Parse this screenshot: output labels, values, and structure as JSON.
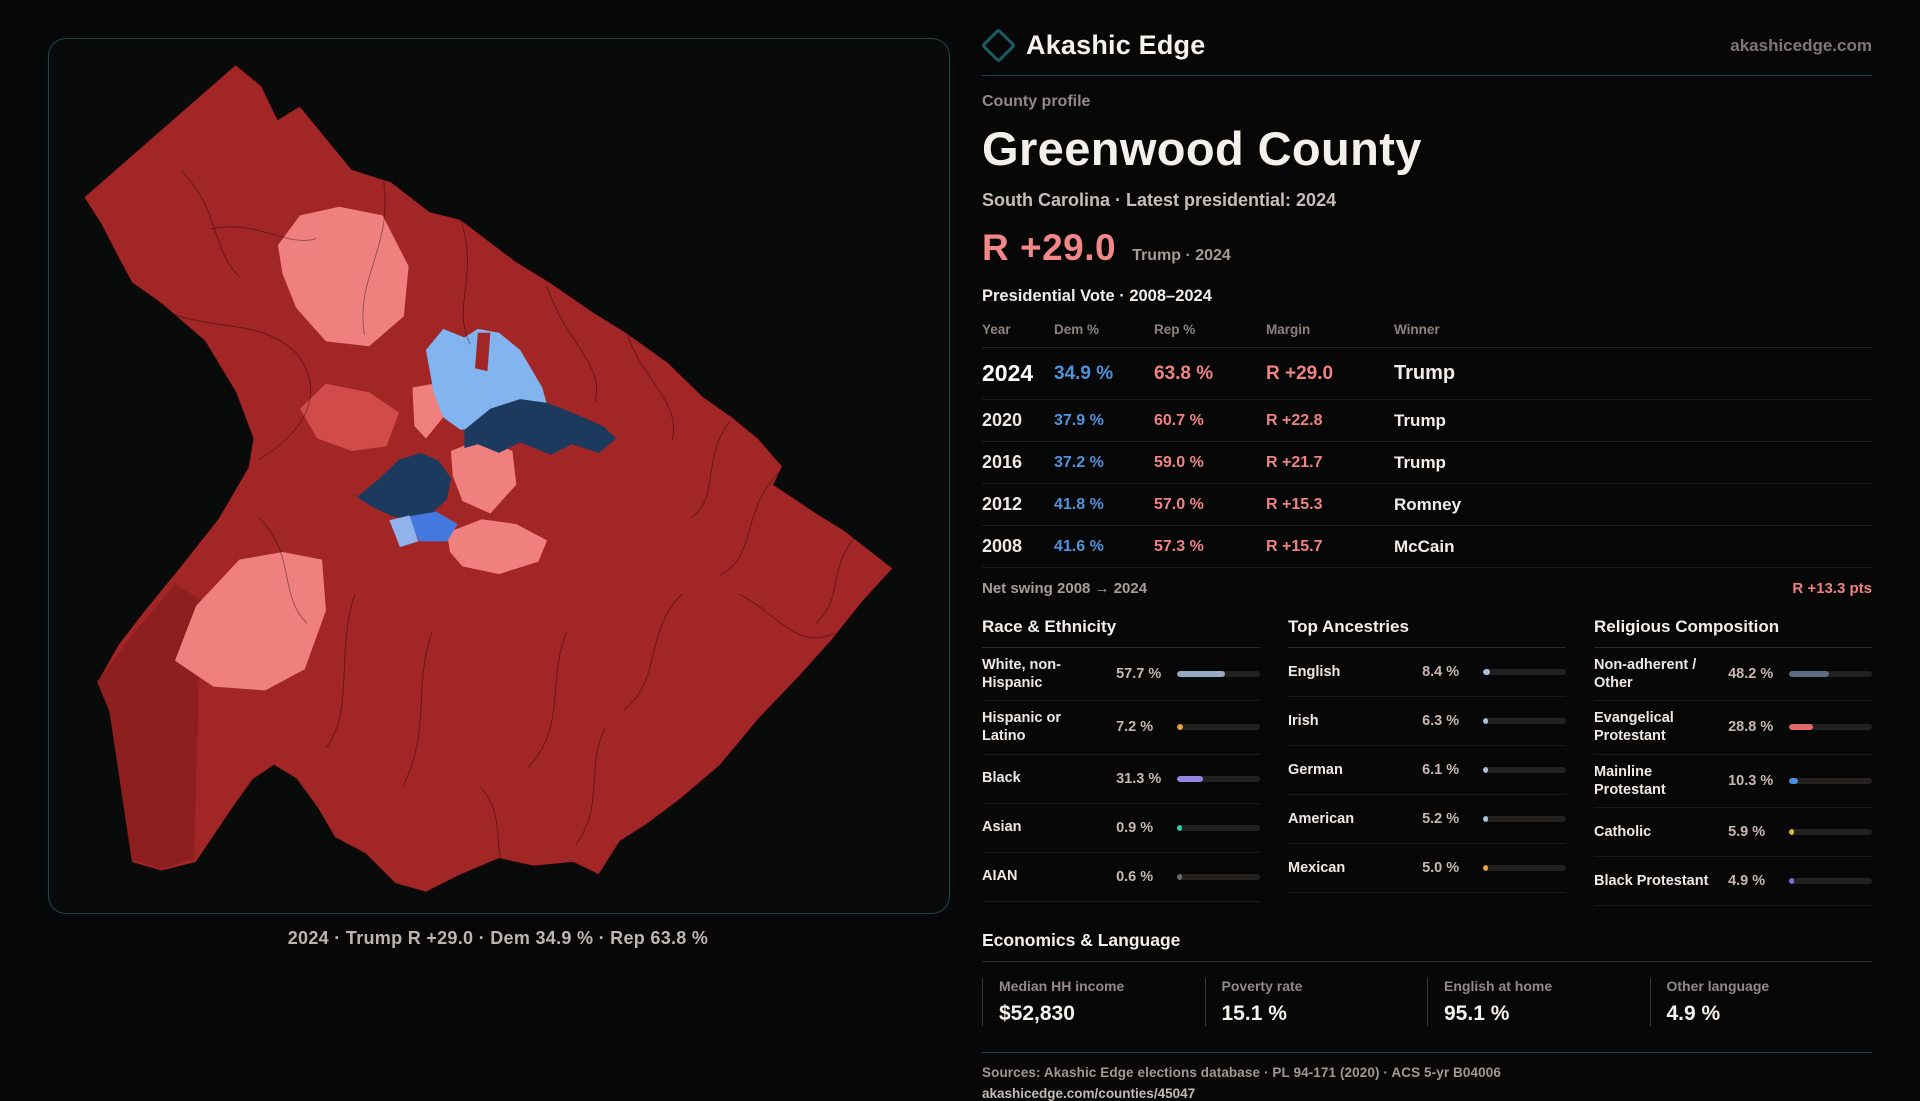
{
  "brand": {
    "logo": "diamond-icon",
    "name": "Akashic Edge",
    "site": "akashicedge.com"
  },
  "profile": {
    "kicker": "County profile",
    "title": "Greenwood County",
    "subtitle": "South Carolina · Latest presidential: 2024"
  },
  "headline": {
    "margin": "R +29.0",
    "note": "Trump · 2024"
  },
  "vote_table": {
    "title": "Presidential Vote · 2008–2024",
    "columns": {
      "year": "Year",
      "dem": "Dem %",
      "rep": "Rep %",
      "margin": "Margin",
      "winner": "Winner"
    },
    "rows": [
      {
        "year": "2024",
        "dem": "34.9 %",
        "rep": "63.8 %",
        "margin": "R +29.0",
        "winner": "Trump",
        "highlight": true
      },
      {
        "year": "2020",
        "dem": "37.9 %",
        "rep": "60.7 %",
        "margin": "R +22.8",
        "winner": "Trump",
        "highlight": false
      },
      {
        "year": "2016",
        "dem": "37.2 %",
        "rep": "59.0 %",
        "margin": "R +21.7",
        "winner": "Trump",
        "highlight": false
      },
      {
        "year": "2012",
        "dem": "41.8 %",
        "rep": "57.0 %",
        "margin": "R +15.3",
        "winner": "Romney",
        "highlight": false
      },
      {
        "year": "2008",
        "dem": "41.6 %",
        "rep": "57.3 %",
        "margin": "R +15.7",
        "winner": "McCain",
        "highlight": false
      }
    ],
    "net_swing": {
      "label": "Net swing 2008 → 2024",
      "value": "R +13.3 pts"
    }
  },
  "stat_sections": [
    {
      "title": "Race & Ethnicity",
      "rows": [
        {
          "label": "White, non-Hispanic",
          "value": "57.7 %",
          "pct": 57.7,
          "color": "#97a9c2"
        },
        {
          "label": "Hispanic or Latino",
          "value": "7.2 %",
          "pct": 7.2,
          "color": "#e8a23c"
        },
        {
          "label": "Black",
          "value": "31.3 %",
          "pct": 31.3,
          "color": "#9486e3"
        },
        {
          "label": "Asian",
          "value": "0.9 %",
          "pct": 0.9,
          "color": "#34c9a3"
        },
        {
          "label": "AIAN",
          "value": "0.6 %",
          "pct": 0.6,
          "color": "#6e6a68"
        }
      ]
    },
    {
      "title": "Top Ancestries",
      "rows": [
        {
          "label": "English",
          "value": "8.4 %",
          "pct": 8.4,
          "color": "#a9c0dc"
        },
        {
          "label": "Irish",
          "value": "6.3 %",
          "pct": 6.3,
          "color": "#a9c0dc"
        },
        {
          "label": "German",
          "value": "6.1 %",
          "pct": 6.1,
          "color": "#a9c0dc"
        },
        {
          "label": "American",
          "value": "5.2 %",
          "pct": 5.2,
          "color": "#a9c0dc"
        },
        {
          "label": "Mexican",
          "value": "5.0 %",
          "pct": 5.0,
          "color": "#e8a23c"
        }
      ]
    },
    {
      "title": "Religious Composition",
      "rows": [
        {
          "label": "Non-adherent / Other",
          "value": "48.2 %",
          "pct": 48.2,
          "color": "#5c6b80"
        },
        {
          "label": "Evangelical Protestant",
          "value": "28.8 %",
          "pct": 28.8,
          "color": "#e06a6a"
        },
        {
          "label": "Mainline Protestant",
          "value": "10.3 %",
          "pct": 10.3,
          "color": "#4a90e2"
        },
        {
          "label": "Catholic",
          "value": "5.9 %",
          "pct": 5.9,
          "color": "#e0b23c"
        },
        {
          "label": "Black Protestant",
          "value": "4.9 %",
          "pct": 4.9,
          "color": "#7d6ee0"
        }
      ]
    }
  ],
  "economics": {
    "title": "Economics & Language",
    "stats": [
      {
        "label": "Median HH income",
        "value": "$52,830"
      },
      {
        "label": "Poverty rate",
        "value": "15.1 %"
      },
      {
        "label": "English at home",
        "value": "95.1 %"
      },
      {
        "label": "Other language",
        "value": "4.9 %"
      }
    ]
  },
  "footer": {
    "sources": "Sources: Akashic Edge elections database · PL 94-171 (2020) · ACS 5-yr B04006",
    "permalink": "akashicedge.com/counties/45047"
  },
  "map": {
    "caption": "2024 · Trump R +29.0 · Dem 34.9 % · Rep 63.8 %",
    "colors": {
      "base": "#a32626",
      "deep": "#8e1f1f",
      "midred": "#d14b4b",
      "lightred": "#f0807d",
      "lightblue": "#82b4f0",
      "navy": "#1c3a5e",
      "blue": "#4479e0",
      "paleblue": "#8fb3ea",
      "border": "#150a0a"
    }
  }
}
